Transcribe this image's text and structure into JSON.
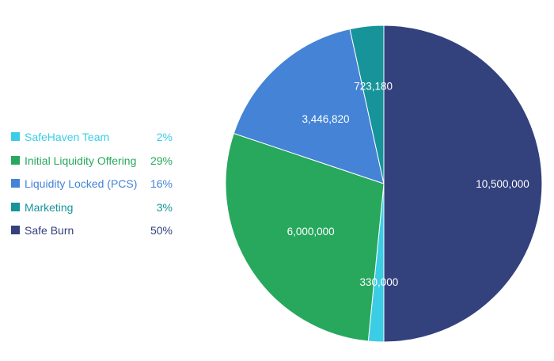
{
  "chart_data": {
    "type": "pie",
    "title": "",
    "legend_position": "left",
    "slices": [
      {
        "name": "SafeHaven Team",
        "value": 330000,
        "percent_label": "2%",
        "value_label": "330,000",
        "color": "#3bcde6"
      },
      {
        "name": "Initial Liquidity Offering",
        "value": 6000000,
        "percent_label": "29%",
        "value_label": "6,000,000",
        "color": "#27a85d"
      },
      {
        "name": "Liquidity Locked (PCS)",
        "value": 3446820,
        "percent_label": "16%",
        "value_label": "3,446,820",
        "color": "#4483d6"
      },
      {
        "name": "Marketing",
        "value": 723180,
        "percent_label": "3%",
        "value_label": "723,180",
        "color": "#17949a"
      },
      {
        "name": "Safe Burn",
        "value": 10500000,
        "percent_label": "50%",
        "value_label": "10,500,000",
        "color": "#33417d"
      }
    ]
  }
}
